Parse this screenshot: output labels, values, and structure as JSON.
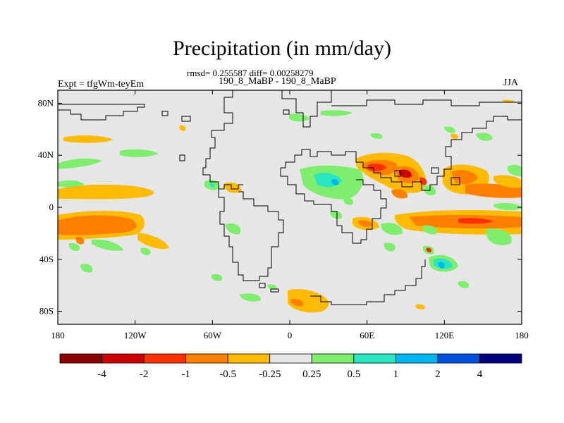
{
  "title": "Precipitation (in mm/day)",
  "stats_text": "rmsd= 0.255587 diff= 0.00258279",
  "case_text": "190_8_MaBP - 190_8_MaBP",
  "expt_text": "Expt = tfgWm-teyEm",
  "season": "JJA",
  "map": {
    "background_color": "#e6e6e6",
    "lon_range": [
      -180,
      180
    ],
    "lat_range": [
      -90,
      90
    ],
    "y_ticks": [
      {
        "lat": 80,
        "label": "80N"
      },
      {
        "lat": 40,
        "label": "40N"
      },
      {
        "lat": 0,
        "label": "0"
      },
      {
        "lat": -40,
        "label": "40S"
      },
      {
        "lat": -80,
        "label": "80S"
      }
    ],
    "x_ticks": [
      {
        "lon": -180,
        "label": "180"
      },
      {
        "lon": -120,
        "label": "120W"
      },
      {
        "lon": -60,
        "label": "60W"
      },
      {
        "lon": 0,
        "label": "0"
      },
      {
        "lon": 60,
        "label": "60E"
      },
      {
        "lon": 120,
        "label": "120E"
      },
      {
        "lon": 180,
        "label": "180"
      }
    ]
  },
  "colorbar": {
    "colors": [
      "#8b0000",
      "#cd0000",
      "#ff3000",
      "#ff7f00",
      "#ffbb00",
      "#e6e6e6",
      "#7fed6e",
      "#2ae6c0",
      "#00b6f0",
      "#0050e0",
      "#000080"
    ],
    "labels": [
      "-4",
      "-2",
      "-1",
      "-0.5",
      "-0.25",
      "0.25",
      "0.5",
      "1",
      "2",
      "4"
    ]
  },
  "chart_data": {
    "type": "heatmap",
    "title": "Precipitation (in mm/day)",
    "subtitle": "rmsd= 0.255587 diff= 0.00258279",
    "xlabel": "",
    "ylabel": "",
    "xlim": [
      -180,
      180
    ],
    "ylim": [
      -90,
      90
    ],
    "levels": [
      -4,
      -2,
      -1,
      -0.5,
      -0.25,
      0.25,
      0.5,
      1,
      2,
      4
    ],
    "anomaly_regions": [
      {
        "lon": [
          -180,
          -100
        ],
        "lat": [
          -20,
          -5
        ],
        "class": "-0.5 to -1"
      },
      {
        "lon": [
          -180,
          -130
        ],
        "lat": [
          5,
          15
        ],
        "class": "-0.25 to -0.5"
      },
      {
        "lon": [
          40,
          95
        ],
        "lat": [
          15,
          40
        ],
        "class": "-1 to -4"
      },
      {
        "lon": [
          125,
          180
        ],
        "lat": [
          5,
          35
        ],
        "class": "-0.5 to -1"
      },
      {
        "lon": [
          40,
          180
        ],
        "lat": [
          -15,
          -5
        ],
        "class": "-0.5 to -1"
      },
      {
        "lon": [
          10,
          45
        ],
        "lat": [
          10,
          30
        ],
        "class": "0.5 to 1"
      },
      {
        "lon": [
          110,
          130
        ],
        "lat": [
          -50,
          -35
        ],
        "class": "1 to 2"
      },
      {
        "lon": [
          0,
          40
        ],
        "lat": [
          -85,
          -70
        ],
        "class": "-0.25 to -0.5"
      }
    ]
  }
}
